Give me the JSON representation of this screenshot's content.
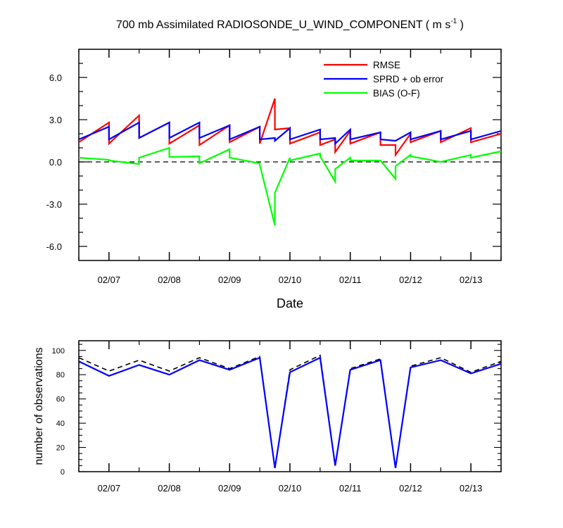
{
  "chart_data": [
    {
      "type": "line",
      "title": "700 mb Assimilated RADIOSONDE_U_WIND_COMPONENT ( m s",
      "title_units_sup": "-1",
      "title_close": " )",
      "xlabel": "Date",
      "ylabel": "",
      "x_ticks": [
        "02/07",
        "02/08",
        "02/09",
        "02/10",
        "02/11",
        "02/12",
        "02/13"
      ],
      "x_range_days": [
        6.5,
        13.5
      ],
      "ylim": [
        -7.0,
        8.0
      ],
      "y_ticks": [
        "6.0",
        "3.0",
        "0.0",
        "-3.0",
        "-6.0"
      ],
      "y_tick_values": [
        6,
        3,
        0,
        -3,
        -6
      ],
      "zero_line": "dashed",
      "legend_placement": "top-right",
      "series": [
        {
          "name": "RMSE",
          "color": "#ff0000",
          "points": [
            [
              6.5,
              1.4
            ],
            [
              7.0,
              2.8
            ],
            [
              7.0,
              1.3
            ],
            [
              7.5,
              3.3
            ],
            [
              7.5,
              1.7
            ],
            [
              8.0,
              2.8
            ],
            [
              8.0,
              1.3
            ],
            [
              8.5,
              2.6
            ],
            [
              8.5,
              1.2
            ],
            [
              9.0,
              2.6
            ],
            [
              9.0,
              1.4
            ],
            [
              9.5,
              2.5
            ],
            [
              9.5,
              1.3
            ],
            [
              9.75,
              4.5
            ],
            [
              9.75,
              2.3
            ],
            [
              10.0,
              2.4
            ],
            [
              10.0,
              1.3
            ],
            [
              10.5,
              2.1
            ],
            [
              10.5,
              1.2
            ],
            [
              10.75,
              1.6
            ],
            [
              10.75,
              0.7
            ],
            [
              11.0,
              2.2
            ],
            [
              11.0,
              1.3
            ],
            [
              11.5,
              2.1
            ],
            [
              11.5,
              1.2
            ],
            [
              11.75,
              1.2
            ],
            [
              11.75,
              0.5
            ],
            [
              12.0,
              2.0
            ],
            [
              12.0,
              1.4
            ],
            [
              12.5,
              2.2
            ],
            [
              12.5,
              1.4
            ],
            [
              13.0,
              2.4
            ],
            [
              13.0,
              1.4
            ],
            [
              13.5,
              2.0
            ]
          ]
        },
        {
          "name": "SPRD + ob error",
          "color": "#0000ff",
          "points": [
            [
              6.5,
              1.6
            ],
            [
              7.0,
              2.5
            ],
            [
              7.0,
              1.6
            ],
            [
              7.5,
              2.8
            ],
            [
              7.5,
              1.7
            ],
            [
              8.0,
              2.8
            ],
            [
              8.0,
              1.7
            ],
            [
              8.5,
              2.8
            ],
            [
              8.5,
              1.7
            ],
            [
              9.0,
              2.6
            ],
            [
              9.0,
              1.6
            ],
            [
              9.5,
              2.5
            ],
            [
              9.5,
              1.6
            ],
            [
              9.75,
              1.7
            ],
            [
              9.75,
              1.5
            ],
            [
              10.0,
              2.4
            ],
            [
              10.0,
              1.6
            ],
            [
              10.5,
              2.3
            ],
            [
              10.5,
              1.6
            ],
            [
              10.75,
              1.7
            ],
            [
              10.75,
              1.3
            ],
            [
              11.0,
              2.3
            ],
            [
              11.0,
              1.6
            ],
            [
              11.5,
              2.1
            ],
            [
              11.5,
              1.6
            ],
            [
              11.75,
              1.5
            ],
            [
              11.75,
              1.5
            ],
            [
              12.0,
              2.1
            ],
            [
              12.0,
              1.6
            ],
            [
              12.5,
              2.2
            ],
            [
              12.5,
              1.6
            ],
            [
              13.0,
              2.2
            ],
            [
              13.0,
              1.6
            ],
            [
              13.5,
              2.2
            ]
          ]
        },
        {
          "name": "BIAS (O-F)",
          "color": "#00ff00",
          "points": [
            [
              6.5,
              0.3
            ],
            [
              7.0,
              0.15
            ],
            [
              7.0,
              0.1
            ],
            [
              7.5,
              -0.15
            ],
            [
              7.5,
              0.3
            ],
            [
              8.0,
              1.0
            ],
            [
              8.0,
              0.35
            ],
            [
              8.5,
              0.4
            ],
            [
              8.5,
              -0.1
            ],
            [
              9.0,
              0.9
            ],
            [
              9.0,
              0.3
            ],
            [
              9.5,
              -0.1
            ],
            [
              9.5,
              -0.2
            ],
            [
              9.75,
              -4.5
            ],
            [
              9.75,
              -2.2
            ],
            [
              10.0,
              0.3
            ],
            [
              10.0,
              0.1
            ],
            [
              10.5,
              0.6
            ],
            [
              10.5,
              0.4
            ],
            [
              10.75,
              -1.4
            ],
            [
              10.75,
              -0.5
            ],
            [
              11.0,
              0.3
            ],
            [
              11.0,
              0.1
            ],
            [
              11.5,
              0.1
            ],
            [
              11.5,
              0.1
            ],
            [
              11.75,
              -1.2
            ],
            [
              11.75,
              -0.3
            ],
            [
              12.0,
              0.5
            ],
            [
              12.0,
              0.4
            ],
            [
              12.5,
              0.0
            ],
            [
              12.5,
              0.0
            ],
            [
              13.0,
              0.5
            ],
            [
              13.0,
              0.3
            ],
            [
              13.5,
              0.75
            ]
          ]
        }
      ]
    },
    {
      "type": "line",
      "title": "",
      "xlabel": "",
      "ylabel": "number of observations",
      "x_ticks": [
        "02/07",
        "02/08",
        "02/09",
        "02/10",
        "02/11",
        "02/12",
        "02/13"
      ],
      "x_range_days": [
        6.5,
        13.5
      ],
      "ylim": [
        0,
        108
      ],
      "y_ticks": [
        "100",
        "80",
        "60",
        "40",
        "20",
        "0"
      ],
      "y_tick_values": [
        100,
        80,
        60,
        40,
        20,
        0
      ],
      "series": [
        {
          "style": "dashed",
          "color": "#000000",
          "points": [
            [
              6.5,
              94
            ],
            [
              7.0,
              83
            ],
            [
              7.5,
              92
            ],
            [
              8.0,
              83
            ],
            [
              8.5,
              94
            ],
            [
              9.0,
              85
            ],
            [
              9.5,
              95
            ],
            [
              9.75,
              3
            ],
            [
              10.0,
              84
            ],
            [
              10.5,
              96
            ],
            [
              10.75,
              5
            ],
            [
              11.0,
              85
            ],
            [
              11.5,
              93
            ],
            [
              11.75,
              3
            ],
            [
              12.0,
              87
            ],
            [
              12.5,
              94
            ],
            [
              13.0,
              82
            ],
            [
              13.5,
              91
            ]
          ]
        },
        {
          "style": "solid",
          "color": "#0000ff",
          "points": [
            [
              6.5,
              91
            ],
            [
              7.0,
              79
            ],
            [
              7.5,
              88
            ],
            [
              8.0,
              80
            ],
            [
              8.5,
              92
            ],
            [
              9.0,
              84
            ],
            [
              9.5,
              94
            ],
            [
              9.75,
              3
            ],
            [
              10.0,
              82
            ],
            [
              10.5,
              94
            ],
            [
              10.75,
              5
            ],
            [
              11.0,
              84
            ],
            [
              11.5,
              92
            ],
            [
              11.75,
              3
            ],
            [
              12.0,
              86
            ],
            [
              12.5,
              92
            ],
            [
              13.0,
              81
            ],
            [
              13.5,
              89
            ]
          ]
        }
      ]
    }
  ]
}
